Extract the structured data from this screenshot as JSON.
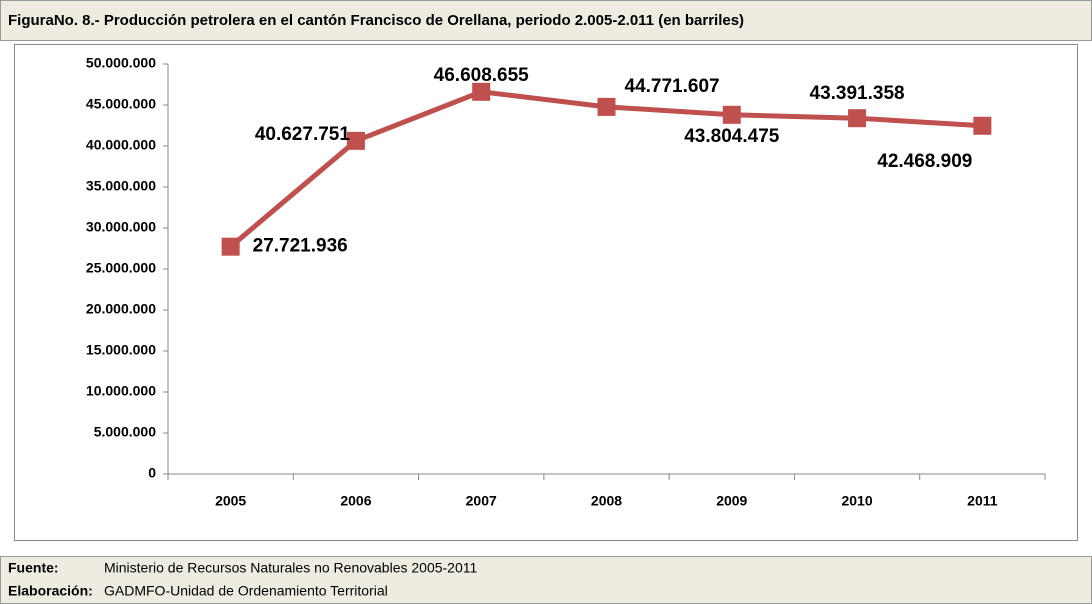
{
  "chart_data": {
    "type": "line",
    "title": "FiguraNo. 8.- Producción petrolera en el cantón Francisco de Orellana, periodo 2.005-2.011 (en barriles)",
    "categories": [
      "2005",
      "2006",
      "2007",
      "2008",
      "2009",
      "2010",
      "2011"
    ],
    "values": [
      27721936,
      40627751,
      46608655,
      44771607,
      43804475,
      43391358,
      42468909
    ],
    "value_labels": [
      "27.721.936",
      "40.627.751",
      "46.608.655",
      "44.771.607",
      "43.804.475",
      "43.391.358",
      "42.468.909"
    ],
    "color": "#c0504d",
    "ylim": [
      0,
      50000000
    ],
    "yticks": [
      0,
      {
        "value": 5000000,
        "label": "5.000.000"
      },
      {
        "value": 10000000,
        "label": "10.000.000"
      },
      {
        "value": 15000000,
        "label": "15.000.000"
      },
      {
        "value": 20000000,
        "label": "20.000.000"
      },
      {
        "value": 25000000,
        "label": "25.000.000"
      },
      {
        "value": 30000000,
        "label": "30.000.000"
      },
      {
        "value": 35000000,
        "label": "35.000.000"
      },
      {
        "value": 40000000,
        "label": "40.000.000"
      },
      {
        "value": 45000000,
        "label": "45.000.000"
      },
      {
        "value": 50000000,
        "label": "50.000.000"
      }
    ],
    "grid": false
  },
  "footer": {
    "source_label": "Fuente:",
    "source": "Ministerio de Recursos Naturales no Renovables 2005-2011",
    "made_label": "Elaboración:",
    "made": "GADMFO-Unidad de Ordenamiento Territorial"
  }
}
